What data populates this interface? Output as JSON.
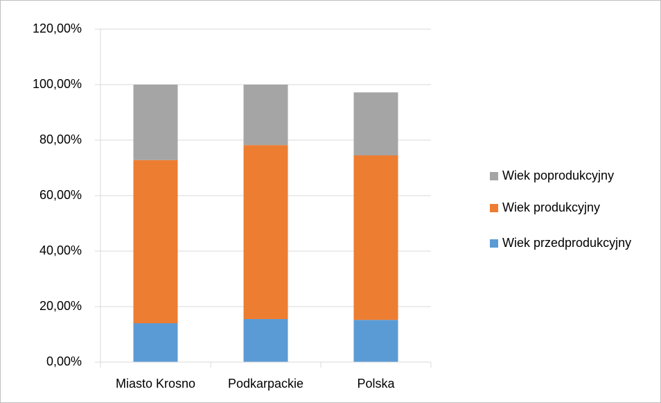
{
  "chart_data": {
    "type": "stacked_bar",
    "categories": [
      "Miasto Krosno",
      "Podkarpackie",
      "Polska"
    ],
    "series": [
      {
        "name": "Wiek przedprodukcyjny",
        "color": "#5b9bd5",
        "values": [
          14.0,
          15.5,
          15.2
        ]
      },
      {
        "name": "Wiek produkcyjny",
        "color": "#ed7d31",
        "values": [
          58.8,
          62.7,
          59.3
        ]
      },
      {
        "name": "Wiek poprodukcyjny",
        "color": "#a5a5a5",
        "values": [
          27.2,
          21.8,
          22.7
        ]
      }
    ],
    "ylim": [
      0,
      120
    ],
    "yticks": [
      {
        "value": 0,
        "label": "0,00%"
      },
      {
        "value": 20,
        "label": "20,00%"
      },
      {
        "value": 40,
        "label": "40,00%"
      },
      {
        "value": 60,
        "label": "60,00%"
      },
      {
        "value": 80,
        "label": "80,00%"
      },
      {
        "value": 100,
        "label": "100,00%"
      },
      {
        "value": 120,
        "label": "120,00%"
      }
    ],
    "grid": true,
    "legend": "right"
  }
}
